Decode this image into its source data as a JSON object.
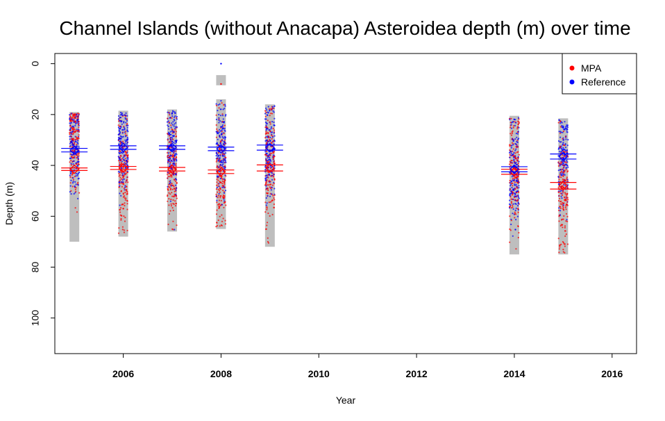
{
  "chart_data": {
    "type": "scatter",
    "title": "Channel Islands (without Anacapa) Asteroidea depth (m) over time",
    "xlabel": "Year",
    "ylabel": "Depth (m)",
    "xlim": [
      2004.6,
      2016.5
    ],
    "ylim": [
      114,
      -4
    ],
    "y_reversed": true,
    "x_ticks": [
      2006,
      2008,
      2010,
      2012,
      2014,
      2016
    ],
    "y_ticks": [
      0,
      20,
      40,
      60,
      80,
      100
    ],
    "grid": false,
    "legend": {
      "position": "top-right",
      "entries": [
        {
          "label": "MPA",
          "color": "#ff0000"
        },
        {
          "label": "Reference",
          "color": "#0000ff"
        }
      ]
    },
    "years": [
      {
        "year": 2005,
        "range": [
          19,
          70
        ],
        "MPA": {
          "mean": 41.5,
          "ci": [
            41,
            42
          ]
        },
        "Reference": {
          "mean": 34,
          "ci": [
            33.3,
            34.7
          ]
        },
        "mpa_center": 30,
        "mpa_spread": 12,
        "ref_center": 32,
        "ref_spread": 9
      },
      {
        "year": 2006,
        "range": [
          18.5,
          68
        ],
        "MPA": {
          "mean": 41,
          "ci": [
            40.4,
            41.6
          ]
        },
        "Reference": {
          "mean": 33,
          "ci": [
            32.3,
            33.7
          ]
        },
        "mpa_center": 42,
        "mpa_spread": 12,
        "ref_center": 33,
        "ref_spread": 9
      },
      {
        "year": 2007,
        "range": [
          18,
          66
        ],
        "MPA": {
          "mean": 41.5,
          "ci": [
            40.8,
            42.2
          ]
        },
        "Reference": {
          "mean": 33,
          "ci": [
            32.3,
            33.7
          ]
        },
        "mpa_center": 42,
        "mpa_spread": 11,
        "ref_center": 33,
        "ref_spread": 9
      },
      {
        "year": 2008,
        "range": [
          14,
          65
        ],
        "MPA": {
          "mean": 42.5,
          "ci": [
            41.8,
            43.2
          ]
        },
        "Reference": {
          "mean": 33.5,
          "ci": [
            32.8,
            34.2
          ]
        },
        "mpa_center": 43,
        "mpa_spread": 11,
        "ref_center": 33,
        "ref_spread": 9
      },
      {
        "year": 2009,
        "range": [
          16,
          72
        ],
        "MPA": {
          "mean": 41,
          "ci": [
            39.8,
            42.2
          ]
        },
        "Reference": {
          "mean": 33,
          "ci": [
            32,
            34
          ]
        },
        "mpa_center": 41,
        "mpa_spread": 12,
        "ref_center": 33,
        "ref_spread": 9
      },
      {
        "year": 2014,
        "range": [
          20.5,
          75
        ],
        "MPA": {
          "mean": 42.5,
          "ci": [
            41.5,
            43.5
          ]
        },
        "Reference": {
          "mean": 41.5,
          "ci": [
            40.5,
            42.5
          ]
        },
        "mpa_center": 43,
        "mpa_spread": 12,
        "ref_center": 42,
        "ref_spread": 11
      },
      {
        "year": 2015,
        "range": [
          21.5,
          75
        ],
        "MPA": {
          "mean": 48,
          "ci": [
            46.7,
            49.3
          ]
        },
        "Reference": {
          "mean": 36.5,
          "ci": [
            35.5,
            37.5
          ]
        },
        "mpa_center": 48,
        "mpa_spread": 12,
        "ref_center": 37,
        "ref_spread": 10
      }
    ],
    "extra_segments": [
      {
        "year": 2008,
        "range": [
          4.5,
          8.5
        ]
      }
    ],
    "outliers": [
      {
        "year": 2008,
        "depth": 0,
        "group": "Reference"
      },
      {
        "year": 2008,
        "depth": 8,
        "group": "MPA"
      },
      {
        "year": 2006,
        "depth": 57,
        "group": "MPA"
      }
    ]
  }
}
